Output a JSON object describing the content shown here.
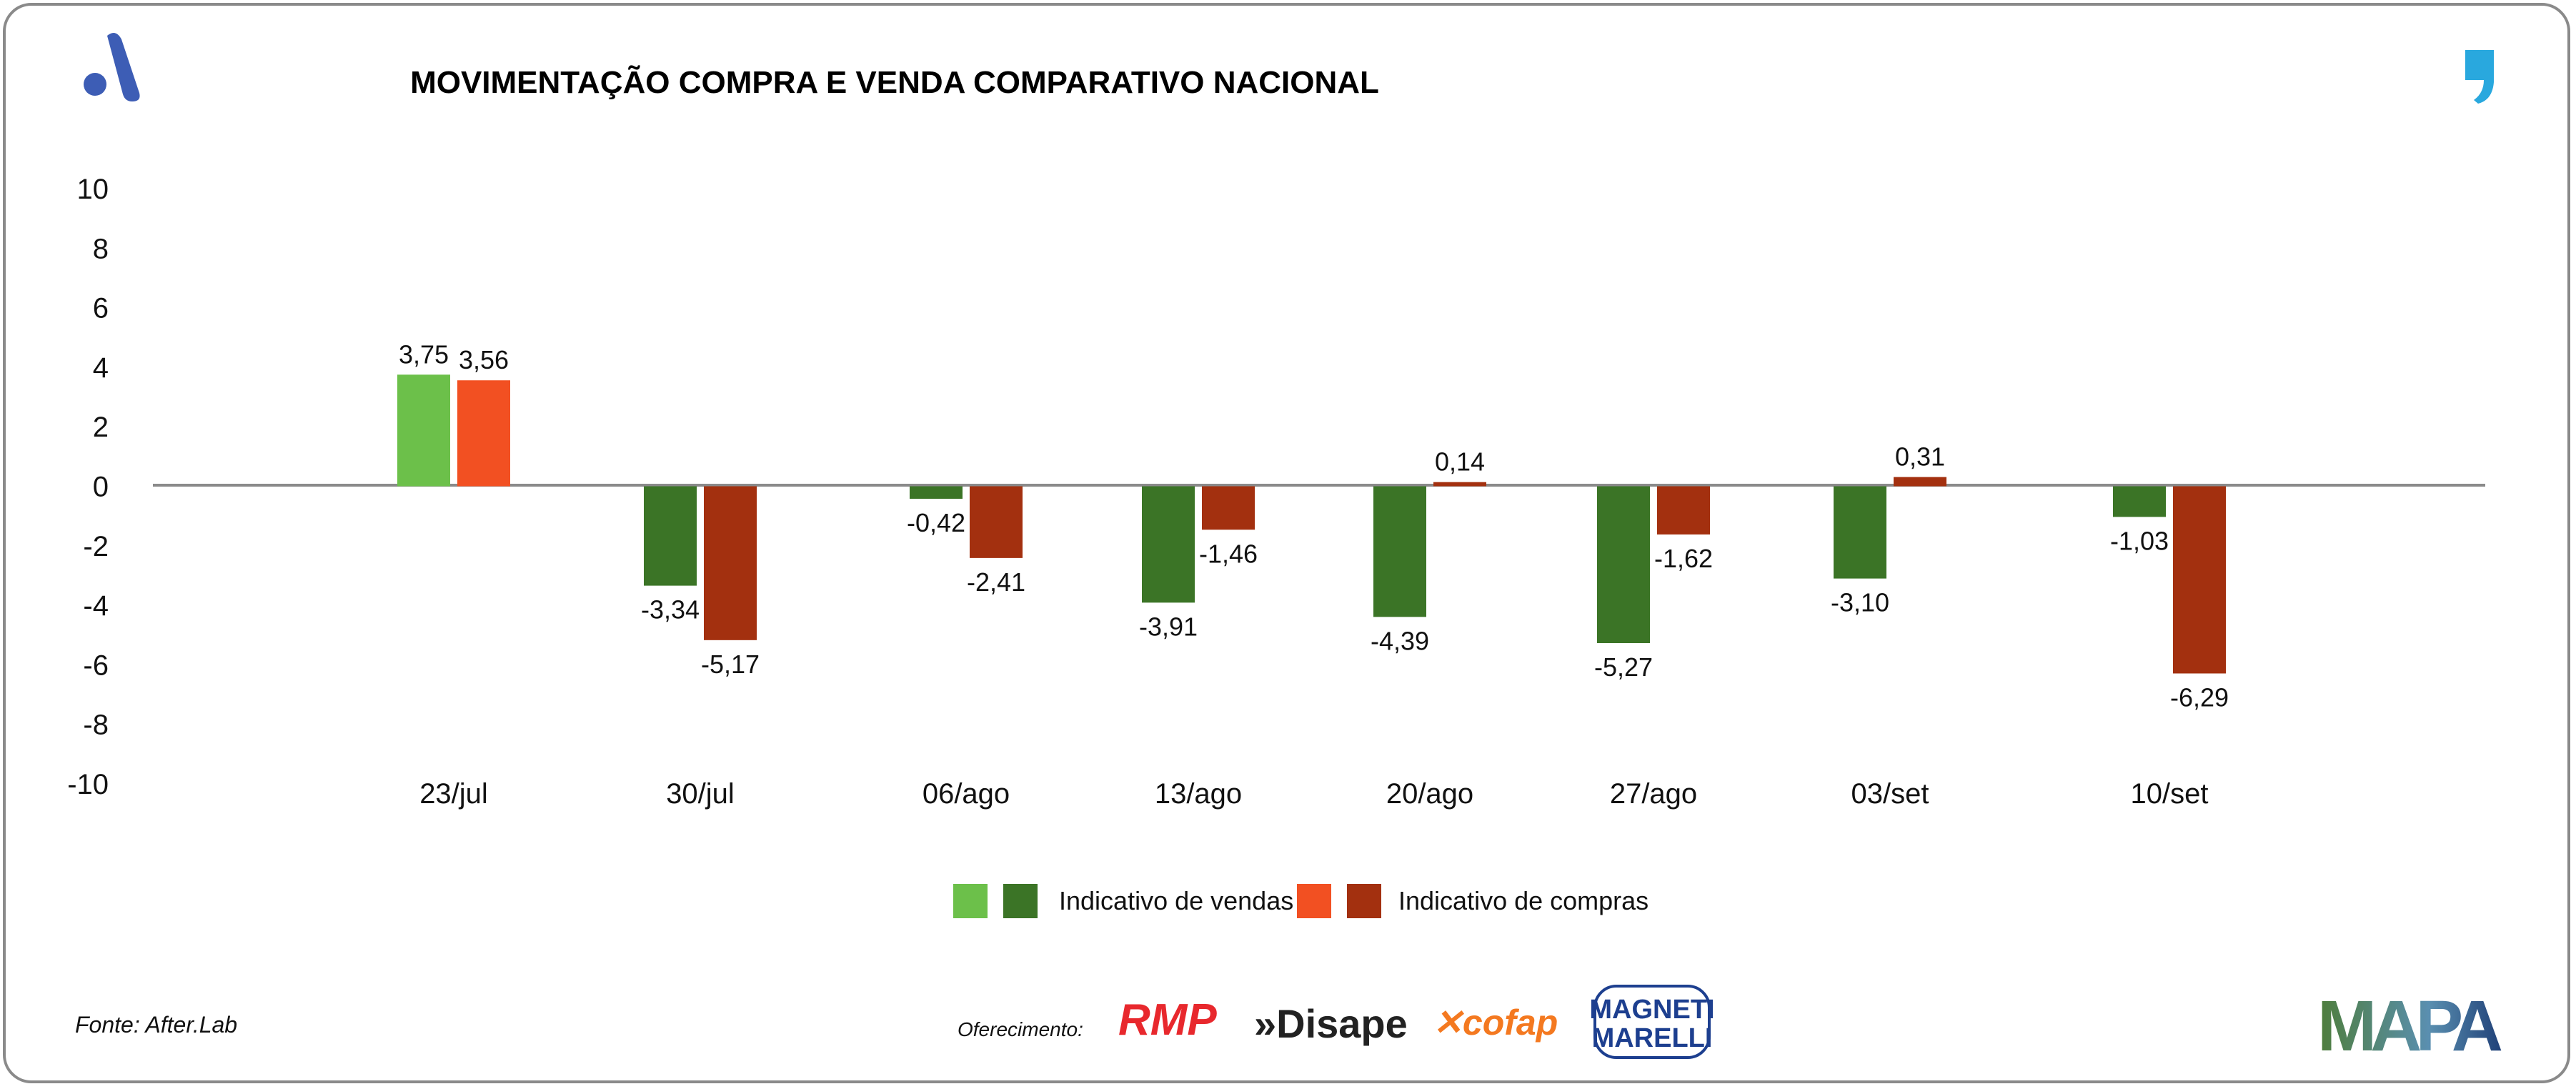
{
  "chart_data": {
    "type": "bar",
    "title": "MOVIMENTAÇÃO COMPRA E VENDA COMPARATIVO NACIONAL",
    "categories": [
      "23/jul",
      "30/jul",
      "06/ago",
      "13/ago",
      "20/ago",
      "27/ago",
      "03/set",
      "10/set"
    ],
    "series": [
      {
        "name": "Indicativo de vendas",
        "values": [
          3.75,
          -3.34,
          -0.42,
          -3.91,
          -4.39,
          -5.27,
          -3.1,
          -1.03
        ],
        "labels": [
          "3,75",
          "-3,34",
          "-0,42",
          "-3,91",
          "-4,39",
          "-5,27",
          "-3,10",
          "-1,03"
        ]
      },
      {
        "name": "Indicativo de compras",
        "values": [
          3.56,
          -5.17,
          -2.41,
          -1.46,
          0.14,
          -1.62,
          0.31,
          -6.29
        ],
        "labels": [
          "3,56",
          "-5,17",
          "-2,41",
          "-1,46",
          "0,14",
          "-1,62",
          "0,31",
          "-6,29"
        ]
      }
    ],
    "ylim": [
      -10,
      10
    ],
    "yticks": [
      "10",
      "8",
      "6",
      "4",
      "2",
      "0",
      "-2",
      "-4",
      "-6",
      "-8",
      "-10"
    ],
    "grid": false,
    "legend_position": "bottom",
    "colors": {
      "vendas_first": "#6cc04a",
      "vendas": "#3b7426",
      "compras_first": "#f25022",
      "compras": "#a3300f"
    }
  },
  "footer": {
    "source": "Fonte: After.Lab",
    "sponsor_label": "Oferecimento:",
    "sponsors": [
      "RMP",
      "Disape",
      "cofap",
      "MAGNETI MARELLI"
    ],
    "brand": "MAPA"
  }
}
